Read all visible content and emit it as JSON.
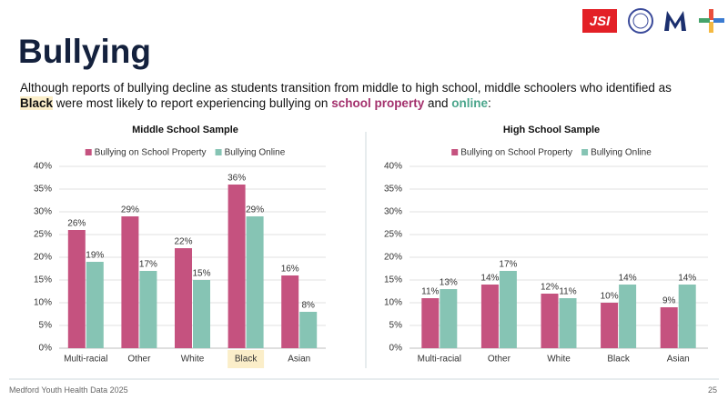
{
  "header": {
    "title": "Bullying",
    "subtitle": [
      "Although reports of bullying decline as students transition from middle to high school, middle schoolers who identified as ",
      "Black",
      " were most likely to report experiencing bullying on ",
      "school property",
      " and ",
      "online",
      ":"
    ]
  },
  "logos": {
    "jsi": "JSI"
  },
  "footer": {
    "source": "Medford Youth Health Data 2025",
    "page": "25"
  },
  "chart_data": [
    {
      "type": "bar",
      "title": "Middle School Sample",
      "categories": [
        "Multi-racial",
        "Other",
        "White",
        "Black",
        "Asian"
      ],
      "series": [
        {
          "name": "Bullying on School Property",
          "color": "#c5527f",
          "values": [
            26,
            29,
            22,
            36,
            16
          ],
          "value_labels": [
            "26%",
            "29%",
            "22%",
            "36%",
            "16%"
          ]
        },
        {
          "name": "Bullying Online",
          "color": "#86c4b4",
          "values": [
            19,
            17,
            15,
            29,
            8
          ],
          "value_labels": [
            "19%",
            "17%",
            "15%",
            "29%",
            "8%"
          ]
        }
      ],
      "ylim": [
        0,
        40
      ],
      "yticks": [
        {
          "value": 0,
          "label": "0%"
        },
        {
          "value": 5,
          "label": "5%"
        },
        {
          "value": 10,
          "label": "10%"
        },
        {
          "value": 15,
          "label": "15%"
        },
        {
          "value": 20,
          "label": "20%"
        },
        {
          "value": 25,
          "label": "25%"
        },
        {
          "value": 30,
          "label": "30%"
        },
        {
          "value": 35,
          "label": "35%"
        },
        {
          "value": 40,
          "label": "40%"
        }
      ],
      "grid": true,
      "legend": "top"
    },
    {
      "type": "bar",
      "title": "High School Sample",
      "categories": [
        "Multi-racial",
        "Other",
        "White",
        "Black",
        "Asian"
      ],
      "series": [
        {
          "name": "Bullying on School Property",
          "color": "#c5527f",
          "values": [
            11,
            14,
            12,
            10,
            9
          ],
          "value_labels": [
            "11%",
            "14%",
            "12%",
            "10%",
            "9%"
          ]
        },
        {
          "name": "Bullying Online",
          "color": "#86c4b4",
          "values": [
            13,
            17,
            11,
            14,
            14
          ],
          "value_labels": [
            "13%",
            "17%",
            "11%",
            "14%",
            "14%"
          ]
        }
      ],
      "ylim": [
        0,
        40
      ],
      "yticks": [
        {
          "value": 0,
          "label": "0%"
        },
        {
          "value": 5,
          "label": "5%"
        },
        {
          "value": 10,
          "label": "10%"
        },
        {
          "value": 15,
          "label": "15%"
        },
        {
          "value": 20,
          "label": "20%"
        },
        {
          "value": 25,
          "label": "25%"
        },
        {
          "value": 30,
          "label": "30%"
        },
        {
          "value": 35,
          "label": "35%"
        },
        {
          "value": 40,
          "label": "40%"
        }
      ],
      "grid": true,
      "legend": "top"
    }
  ]
}
